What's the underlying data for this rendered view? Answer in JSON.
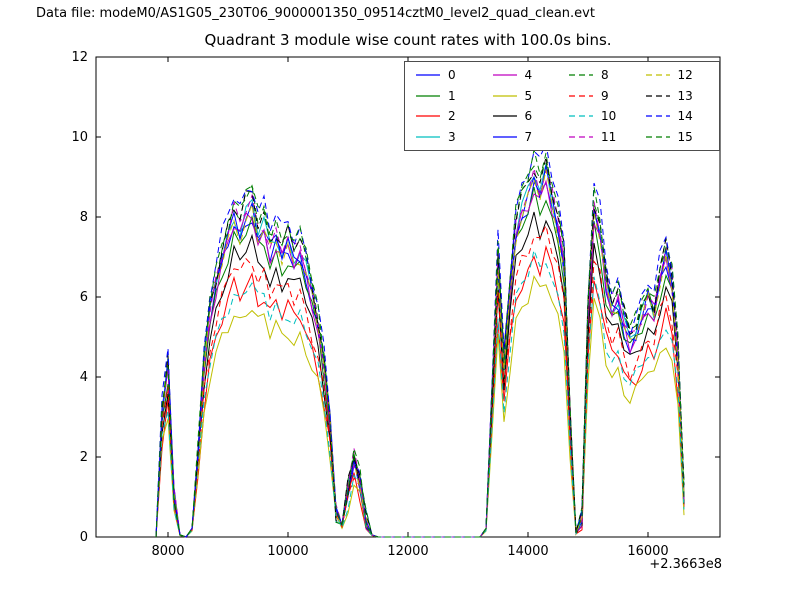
{
  "header": {
    "text": "Data file: modeM0/AS1G05_230T06_9000001350_09514cztM0_level2_quad_clean.evt"
  },
  "chart": {
    "title": "Quadrant 3 module wise count rates with 100.0s bins.",
    "x_offset_label": "+2.3663e8",
    "xlim": [
      6800,
      17200
    ],
    "ylim": [
      0,
      12
    ],
    "xticks": [
      8000,
      10000,
      12000,
      14000,
      16000
    ],
    "yticks": [
      0,
      2,
      4,
      6,
      8,
      10,
      12
    ],
    "grid": false,
    "legend_position": "upper right"
  },
  "chart_data": {
    "type": "line",
    "xlabel": "",
    "ylabel": "",
    "x_start": 7800,
    "x_step": 100,
    "base": [
      0.0,
      3.0,
      4.2,
      1.0,
      0.05,
      0.0,
      0.2,
      2.0,
      4.2,
      5.5,
      6.2,
      6.8,
      7.3,
      7.8,
      7.5,
      7.9,
      8.1,
      7.4,
      7.6,
      7.0,
      7.3,
      6.9,
      7.2,
      6.8,
      7.0,
      6.5,
      5.9,
      5.2,
      4.2,
      2.8,
      0.6,
      0.3,
      1.2,
      1.9,
      1.4,
      0.4,
      0.05,
      0,
      0,
      0,
      0,
      0,
      0,
      0,
      0,
      0,
      0,
      0,
      0,
      0,
      0,
      0,
      0,
      0,
      0,
      0.2,
      3.5,
      6.8,
      4.2,
      6.0,
      7.5,
      8.0,
      8.3,
      8.8,
      8.4,
      8.9,
      8.2,
      7.6,
      6.7,
      3.0,
      0.1,
      0.5,
      5.5,
      8.0,
      7.4,
      6.2,
      5.6,
      5.8,
      5.2,
      4.8,
      5.0,
      5.4,
      5.8,
      5.5,
      6.3,
      6.9,
      6.2,
      4.5,
      1.0
    ],
    "series": [
      {
        "name": "0",
        "color": "#0000ff",
        "style": "solid",
        "scale": 1.0
      },
      {
        "name": "1",
        "color": "#007f00",
        "style": "solid",
        "scale": 0.97
      },
      {
        "name": "2",
        "color": "#ff0000",
        "style": "solid",
        "scale": 0.8
      },
      {
        "name": "3",
        "color": "#00bfbf",
        "style": "solid",
        "scale": 1.03
      },
      {
        "name": "4",
        "color": "#bf00bf",
        "style": "solid",
        "scale": 1.0
      },
      {
        "name": "5",
        "color": "#bfbf00",
        "style": "solid",
        "scale": 0.72
      },
      {
        "name": "6",
        "color": "#000000",
        "style": "solid",
        "scale": 0.91
      },
      {
        "name": "7",
        "color": "#0000ff",
        "style": "solid",
        "scale": 1.02
      },
      {
        "name": "8",
        "color": "#007f00",
        "style": "dashed",
        "scale": 1.07
      },
      {
        "name": "9",
        "color": "#ff0000",
        "style": "dashed",
        "scale": 0.87
      },
      {
        "name": "10",
        "color": "#00bfbf",
        "style": "dashed",
        "scale": 0.79
      },
      {
        "name": "11",
        "color": "#bf00bf",
        "style": "dashed",
        "scale": 1.04
      },
      {
        "name": "12",
        "color": "#bfbf00",
        "style": "dashed",
        "scale": 1.01
      },
      {
        "name": "13",
        "color": "#000000",
        "style": "dashed",
        "scale": 1.06
      },
      {
        "name": "14",
        "color": "#0000ff",
        "style": "dashed",
        "scale": 1.1
      },
      {
        "name": "15",
        "color": "#007f00",
        "style": "dashed",
        "scale": 1.08
      }
    ]
  }
}
